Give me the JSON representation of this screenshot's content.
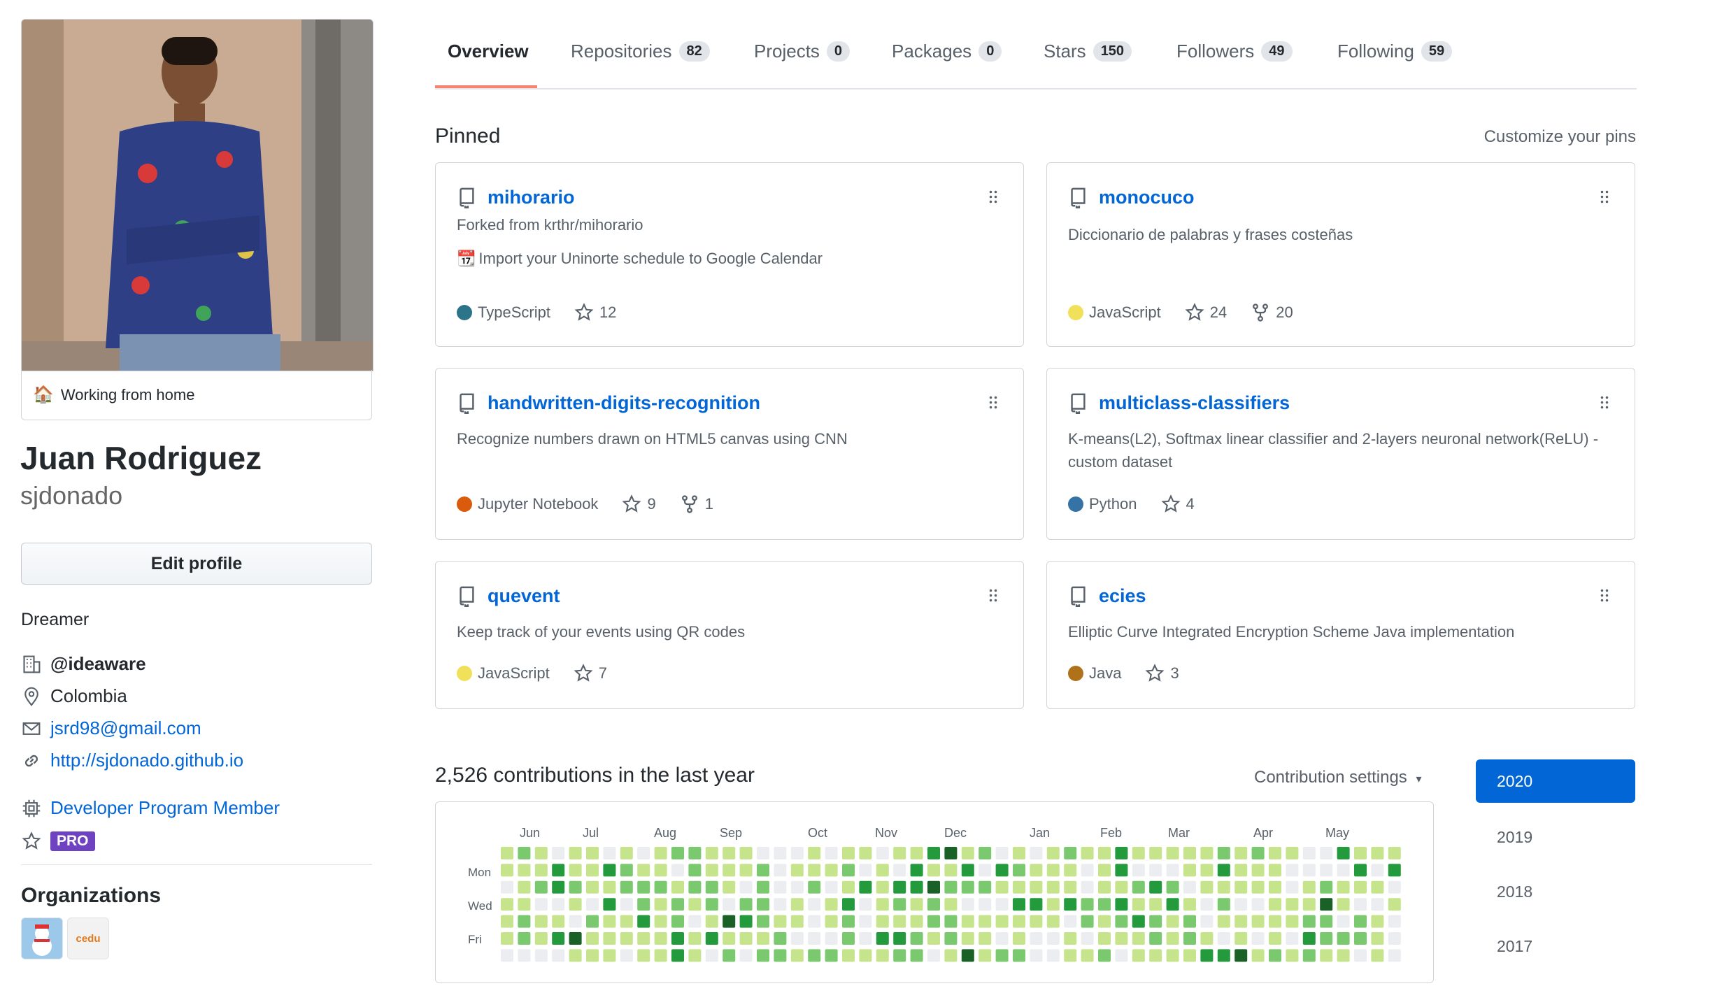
{
  "profile": {
    "status_emoji": "🏠",
    "status_text": "Working from home",
    "full_name": "Juan Rodriguez",
    "username": "sjdonado",
    "edit_button": "Edit profile",
    "bio": "Dreamer",
    "company": "@ideaware",
    "location": "Colombia",
    "email": "jsrd98@gmail.com",
    "website": "http://sjdonado.github.io",
    "developer_program": "Developer Program Member",
    "pro_badge": "PRO",
    "organizations_title": "Organizations",
    "org2_text": "cedu"
  },
  "tabs": [
    {
      "label": "Overview",
      "count": ""
    },
    {
      "label": "Repositories",
      "count": "82"
    },
    {
      "label": "Projects",
      "count": "0"
    },
    {
      "label": "Packages",
      "count": "0"
    },
    {
      "label": "Stars",
      "count": "150"
    },
    {
      "label": "Followers",
      "count": "49"
    },
    {
      "label": "Following",
      "count": "59"
    }
  ],
  "pinned": {
    "title": "Pinned",
    "customize": "Customize your pins",
    "repos": [
      {
        "name": "mihorario",
        "forked_from": "Forked from krthr/mihorario",
        "desc_emoji": "📆",
        "description": "Import your Uninorte schedule to Google Calendar",
        "language": "TypeScript",
        "lang_color": "#2b7489",
        "stars": "12",
        "forks": ""
      },
      {
        "name": "monocuco",
        "forked_from": "",
        "desc_emoji": "",
        "description": "Diccionario de palabras y frases costeñas",
        "language": "JavaScript",
        "lang_color": "#f1e05a",
        "stars": "24",
        "forks": "20"
      },
      {
        "name": "handwritten-digits-recognition",
        "forked_from": "",
        "desc_emoji": "",
        "description": "Recognize numbers drawn on HTML5 canvas using CNN",
        "language": "Jupyter Notebook",
        "lang_color": "#DA5B0B",
        "stars": "9",
        "forks": "1"
      },
      {
        "name": "multiclass-classifiers",
        "forked_from": "",
        "desc_emoji": "",
        "description": "K-means(L2), Softmax linear classifier and 2-layers neuronal network(ReLU) - custom dataset",
        "language": "Python",
        "lang_color": "#3572A5",
        "stars": "4",
        "forks": ""
      },
      {
        "name": "quevent",
        "forked_from": "",
        "desc_emoji": "",
        "description": "Keep track of your events using QR codes",
        "language": "JavaScript",
        "lang_color": "#f1e05a",
        "stars": "7",
        "forks": ""
      },
      {
        "name": "ecies",
        "forked_from": "",
        "desc_emoji": "",
        "description": "Elliptic Curve Integrated Encryption Scheme Java implementation",
        "language": "Java",
        "lang_color": "#b07219",
        "stars": "3",
        "forks": ""
      }
    ]
  },
  "contributions": {
    "heading": "2,526 contributions in the last year",
    "settings": "Contribution settings",
    "months": [
      "Jun",
      "Jul",
      "Aug",
      "Sep",
      "Oct",
      "Nov",
      "Dec",
      "Jan",
      "Feb",
      "Mar",
      "Apr",
      "May"
    ],
    "days": [
      "Mon",
      "Wed",
      "Fri"
    ],
    "years": [
      "2020",
      "2019",
      "2018",
      "2017"
    ],
    "colors": [
      "#ebedf0",
      "#c6e48b",
      "#7bc96f",
      "#239a3b",
      "#196127"
    ]
  }
}
